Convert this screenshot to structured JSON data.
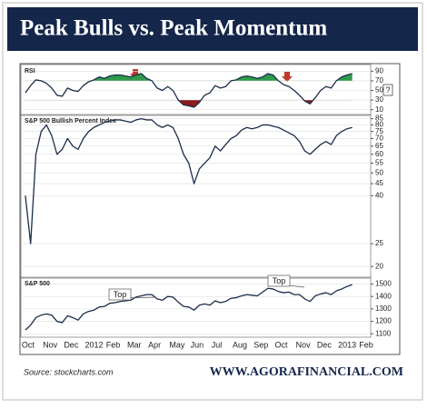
{
  "title": "Peak Bulls vs. Peak Momentum",
  "source": "Source: stockcharts.com",
  "brand": "WWW.AGORAFINANCIAL.COM",
  "help": "?",
  "chart_data": [
    {
      "type": "line",
      "title": "RSI",
      "color": "#1c2e4a",
      "fill_above": 70,
      "fill_above_color": "#2e9a4a",
      "fill_below": 30,
      "fill_below_color": "#8b1a1a",
      "ylim": [
        0,
        100
      ],
      "yticks": [
        90,
        70,
        50,
        30,
        10
      ],
      "grid": true,
      "values": [
        45,
        60,
        72,
        70,
        65,
        55,
        40,
        38,
        55,
        50,
        48,
        60,
        68,
        72,
        78,
        75,
        80,
        82,
        82,
        80,
        78,
        82,
        85,
        75,
        70,
        55,
        50,
        58,
        50,
        30,
        20,
        18,
        15,
        25,
        40,
        45,
        60,
        55,
        58,
        70,
        72,
        78,
        80,
        78,
        75,
        78,
        85,
        82,
        70,
        62,
        58,
        50,
        40,
        28,
        22,
        35,
        50,
        58,
        55,
        70,
        78,
        82,
        85,
        null,
        null,
        null
      ]
    },
    {
      "type": "line",
      "title": "S&P 500 Bullish Percent Index",
      "color": "#1c2e4a",
      "log": true,
      "ylim": [
        18,
        87
      ],
      "yticks": [
        85,
        80,
        75,
        70,
        65,
        60,
        55,
        50,
        45,
        40,
        25,
        20
      ],
      "grid": true,
      "values": [
        40,
        25,
        60,
        75,
        80,
        72,
        60,
        63,
        70,
        65,
        63,
        70,
        75,
        78,
        80,
        82,
        83,
        84,
        84,
        83,
        82,
        84,
        85,
        84,
        84,
        80,
        78,
        80,
        78,
        70,
        60,
        55,
        45,
        52,
        55,
        58,
        65,
        62,
        66,
        70,
        72,
        76,
        78,
        77,
        78,
        80,
        80,
        79,
        78,
        76,
        74,
        72,
        68,
        62,
        60,
        63,
        66,
        68,
        66,
        72,
        75,
        77,
        78,
        null,
        null,
        null
      ]
    },
    {
      "type": "line",
      "title": "S&P 500",
      "color": "#1c2e4a",
      "annotations": [
        "Top",
        "Top"
      ],
      "ylim": [
        1080,
        1540
      ],
      "yticks": [
        1500,
        1400,
        1300,
        1200,
        1100
      ],
      "grid": true,
      "categories": [
        "Oct",
        null,
        null,
        null,
        "Nov",
        null,
        null,
        null,
        "Dec",
        null,
        null,
        null,
        "2012",
        null,
        null,
        null,
        "Feb",
        null,
        null,
        null,
        "Mar",
        null,
        null,
        null,
        "Apr",
        null,
        null,
        null,
        "May",
        null,
        null,
        null,
        "Jun",
        null,
        null,
        null,
        "Jul",
        null,
        null,
        null,
        "Aug",
        null,
        null,
        null,
        "Sep",
        null,
        null,
        null,
        "Oct",
        null,
        null,
        null,
        "Nov",
        null,
        null,
        null,
        "Dec",
        null,
        null,
        null,
        "2013",
        null,
        null,
        null,
        "Feb",
        null
      ],
      "values": [
        1130,
        1170,
        1230,
        1250,
        1260,
        1250,
        1200,
        1190,
        1245,
        1230,
        1210,
        1260,
        1280,
        1290,
        1315,
        1320,
        1345,
        1350,
        1360,
        1365,
        1370,
        1395,
        1405,
        1415,
        1415,
        1380,
        1370,
        1400,
        1395,
        1355,
        1320,
        1315,
        1290,
        1330,
        1340,
        1330,
        1365,
        1350,
        1360,
        1385,
        1390,
        1405,
        1415,
        1410,
        1405,
        1435,
        1465,
        1460,
        1440,
        1430,
        1435,
        1415,
        1415,
        1380,
        1360,
        1405,
        1420,
        1430,
        1415,
        1445,
        1460,
        1480,
        1495,
        null,
        null,
        null
      ]
    }
  ]
}
